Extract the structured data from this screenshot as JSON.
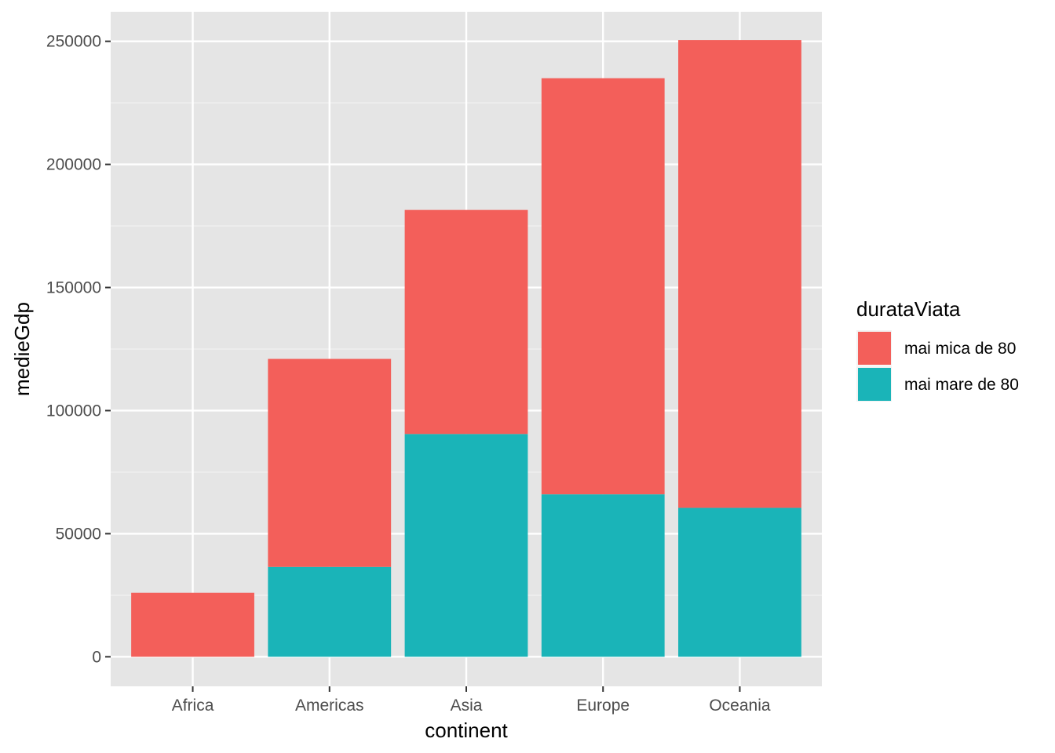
{
  "chart_data": {
    "type": "bar",
    "stacked": true,
    "categories": [
      "Africa",
      "Americas",
      "Asia",
      "Europe",
      "Oceania"
    ],
    "series": [
      {
        "name": "mai mica de 80",
        "color": "#F8766D",
        "fill": "#F35F5A",
        "values": [
          26000,
          84500,
          91000,
          169000,
          190000
        ]
      },
      {
        "name": "mai mare de 80",
        "color": "#00BFC4",
        "fill": "#1AB4B8",
        "values": [
          0,
          36500,
          90500,
          66000,
          60500
        ]
      }
    ],
    "xlabel": "continent",
    "ylabel": "medieGdp",
    "ylim": [
      -12000,
      262000
    ],
    "yticks": [
      0,
      50000,
      100000,
      150000,
      200000,
      250000
    ],
    "ytick_labels": [
      "0",
      "50000",
      "100000",
      "150000",
      "200000",
      "250000"
    ],
    "legend": {
      "title": "durataViata",
      "position": "right"
    },
    "grid": true,
    "panel_background": "#E5E5E5"
  }
}
